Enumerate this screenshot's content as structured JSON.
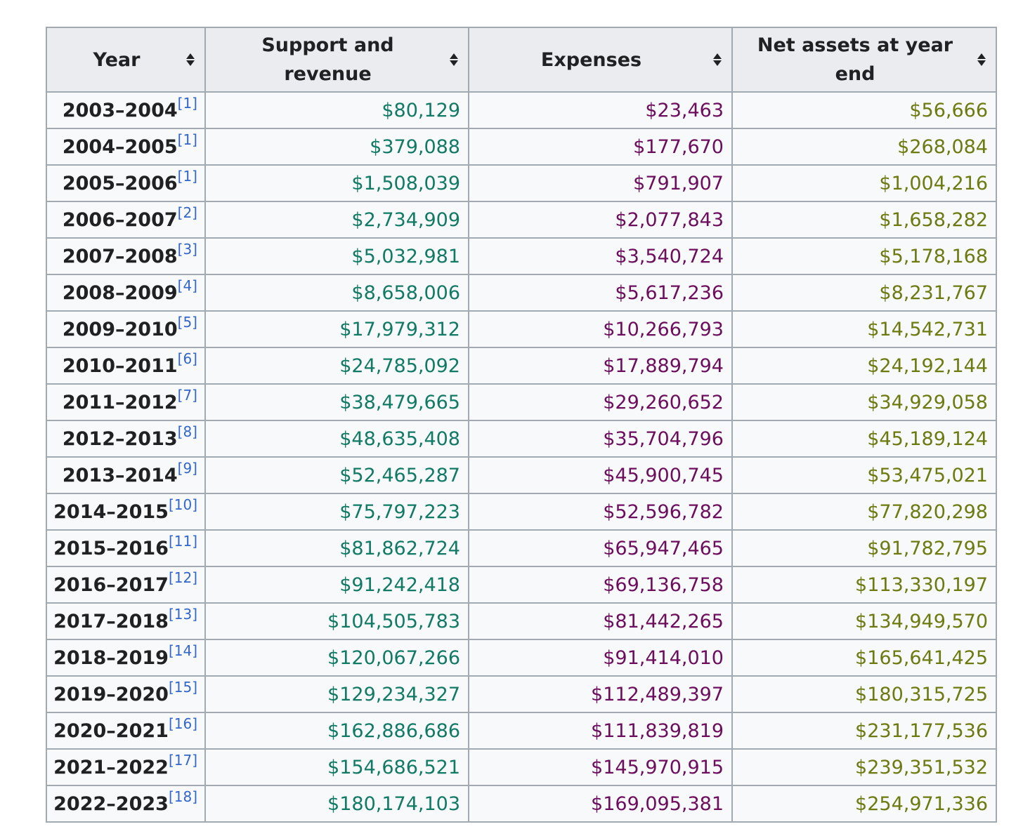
{
  "table": {
    "headers": {
      "year": "Year",
      "revenue": "Support and revenue",
      "expenses": "Expenses",
      "net_assets": "Net assets at year end"
    },
    "colors": {
      "revenue": "#117a65",
      "expenses": "#6c0d5e",
      "net_assets": "#6c7a10",
      "reference": "#3366cc"
    },
    "rows": [
      {
        "year": "2003–2004",
        "ref": "[1]",
        "revenue": "$80,129",
        "expenses": "$23,463",
        "net_assets": "$56,666"
      },
      {
        "year": "2004–2005",
        "ref": "[1]",
        "revenue": "$379,088",
        "expenses": "$177,670",
        "net_assets": "$268,084"
      },
      {
        "year": "2005–2006",
        "ref": "[1]",
        "revenue": "$1,508,039",
        "expenses": "$791,907",
        "net_assets": "$1,004,216"
      },
      {
        "year": "2006–2007",
        "ref": "[2]",
        "revenue": "$2,734,909",
        "expenses": "$2,077,843",
        "net_assets": "$1,658,282"
      },
      {
        "year": "2007–2008",
        "ref": "[3]",
        "revenue": "$5,032,981",
        "expenses": "$3,540,724",
        "net_assets": "$5,178,168"
      },
      {
        "year": "2008–2009",
        "ref": "[4]",
        "revenue": "$8,658,006",
        "expenses": "$5,617,236",
        "net_assets": "$8,231,767"
      },
      {
        "year": "2009–2010",
        "ref": "[5]",
        "revenue": "$17,979,312",
        "expenses": "$10,266,793",
        "net_assets": "$14,542,731"
      },
      {
        "year": "2010–2011",
        "ref": "[6]",
        "revenue": "$24,785,092",
        "expenses": "$17,889,794",
        "net_assets": "$24,192,144"
      },
      {
        "year": "2011–2012",
        "ref": "[7]",
        "revenue": "$38,479,665",
        "expenses": "$29,260,652",
        "net_assets": "$34,929,058"
      },
      {
        "year": "2012–2013",
        "ref": "[8]",
        "revenue": "$48,635,408",
        "expenses": "$35,704,796",
        "net_assets": "$45,189,124"
      },
      {
        "year": "2013–2014",
        "ref": "[9]",
        "revenue": "$52,465,287",
        "expenses": "$45,900,745",
        "net_assets": "$53,475,021"
      },
      {
        "year": "2014–2015",
        "ref": "[10]",
        "revenue": "$75,797,223",
        "expenses": "$52,596,782",
        "net_assets": "$77,820,298"
      },
      {
        "year": "2015–2016",
        "ref": "[11]",
        "revenue": "$81,862,724",
        "expenses": "$65,947,465",
        "net_assets": "$91,782,795"
      },
      {
        "year": "2016–2017",
        "ref": "[12]",
        "revenue": "$91,242,418",
        "expenses": "$69,136,758",
        "net_assets": "$113,330,197"
      },
      {
        "year": "2017–2018",
        "ref": "[13]",
        "revenue": "$104,505,783",
        "expenses": "$81,442,265",
        "net_assets": "$134,949,570"
      },
      {
        "year": "2018–2019",
        "ref": "[14]",
        "revenue": "$120,067,266",
        "expenses": "$91,414,010",
        "net_assets": "$165,641,425"
      },
      {
        "year": "2019–2020",
        "ref": "[15]",
        "revenue": "$129,234,327",
        "expenses": "$112,489,397",
        "net_assets": "$180,315,725"
      },
      {
        "year": "2020–2021",
        "ref": "[16]",
        "revenue": "$162,886,686",
        "expenses": "$111,839,819",
        "net_assets": "$231,177,536"
      },
      {
        "year": "2021–2022",
        "ref": "[17]",
        "revenue": "$154,686,521",
        "expenses": "$145,970,915",
        "net_assets": "$239,351,532"
      },
      {
        "year": "2022–2023",
        "ref": "[18]",
        "revenue": "$180,174,103",
        "expenses": "$169,095,381",
        "net_assets": "$254,971,336"
      }
    ]
  }
}
